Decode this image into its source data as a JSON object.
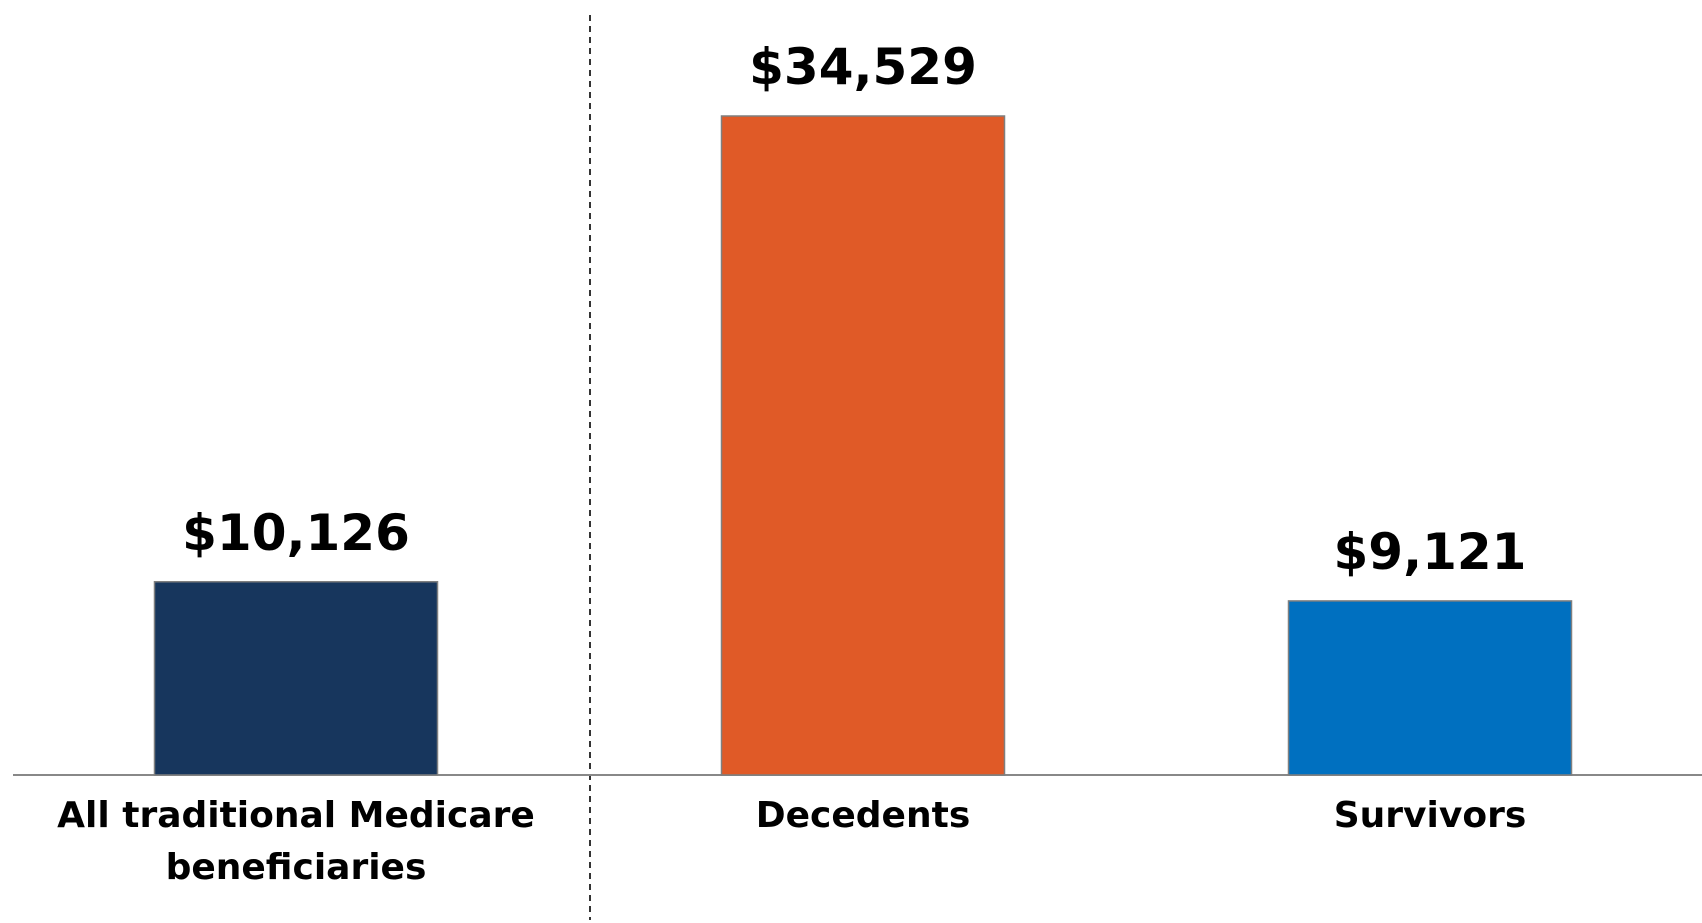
{
  "chart_data": {
    "type": "bar",
    "categories": [
      "All traditional Medicare beneficiaries",
      "Decedents",
      "Survivors"
    ],
    "values": [
      10126,
      34529,
      9121
    ],
    "value_labels": [
      "$10,126",
      "$34,529",
      "$9,121"
    ],
    "colors": [
      "#17365d",
      "#e05a27",
      "#0070c0"
    ]
  }
}
